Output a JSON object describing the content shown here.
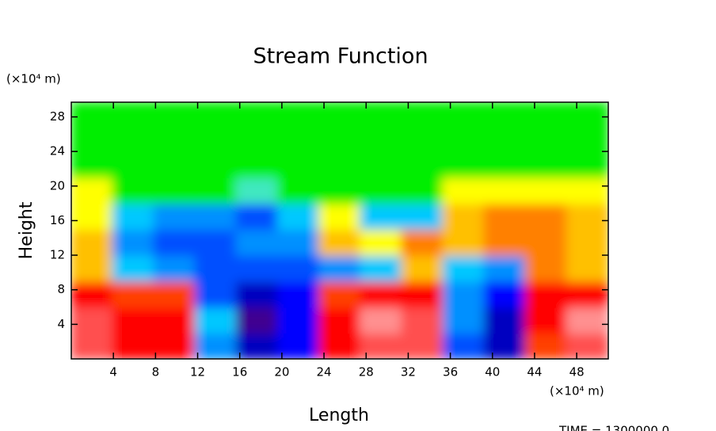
{
  "chart_data": {
    "type": "contour",
    "title": "Stream Function",
    "x_label": "Length",
    "y_label": "Height",
    "x_unit": "(×10⁴ m)",
    "y_unit": "(×10⁴ m)",
    "footer": "TIME = 1300000.0",
    "xlim": [
      0,
      51
    ],
    "ylim": [
      0,
      29.7
    ],
    "xticks": [
      4,
      8,
      12,
      16,
      20,
      24,
      28,
      32,
      36,
      40,
      44,
      48
    ],
    "yticks": [
      4,
      8,
      12,
      16,
      20,
      24,
      28
    ],
    "x": [
      0,
      3.92,
      7.85,
      11.77,
      15.69,
      19.62,
      23.54,
      27.46,
      31.38,
      35.31,
      39.23,
      43.15,
      47.08,
      51
    ],
    "y": [
      0,
      3,
      6,
      9,
      12,
      15,
      18,
      21,
      24,
      27,
      29.7
    ],
    "z": [
      [
        7,
        6,
        6,
        -2,
        -5,
        -4,
        6,
        7,
        7,
        -3,
        -5,
        5,
        7
      ],
      [
        7,
        6,
        6,
        -1,
        -6,
        -4,
        6,
        8,
        7,
        -2,
        -5,
        6,
        8
      ],
      [
        6,
        5,
        5,
        -3,
        -5,
        -4,
        5,
        6,
        6,
        -2,
        -4,
        6,
        6
      ],
      [
        3,
        -1,
        -2,
        -3,
        -3,
        -3,
        -2,
        -1,
        3,
        -1,
        -2,
        4,
        3
      ],
      [
        3,
        -2,
        -3,
        -3,
        -2,
        -2,
        3,
        2,
        4,
        3,
        4,
        4,
        3
      ],
      [
        2,
        -1,
        -2,
        -2,
        -3,
        -1,
        2,
        -1,
        -1,
        3,
        4,
        4,
        3
      ],
      [
        2,
        1,
        1,
        1,
        0,
        1,
        1,
        1,
        1,
        2,
        2,
        2,
        2
      ],
      [
        1,
        1,
        1,
        1,
        1,
        1,
        1,
        1,
        1,
        1,
        1,
        1,
        1
      ],
      [
        1,
        1,
        1,
        1,
        1,
        1,
        1,
        1,
        1,
        1,
        1,
        1,
        1
      ],
      [
        1,
        1,
        1,
        1,
        1,
        1,
        1,
        1,
        1,
        1,
        1,
        1,
        1
      ]
    ],
    "zlim": [
      -6,
      8
    ],
    "colors": [
      "#400090",
      "#0000c0",
      "#0000ff",
      "#0050ff",
      "#0090ff",
      "#00c8ff",
      "#40e8c0",
      "#00ee00",
      "#ffff00",
      "#ffc000",
      "#ff8000",
      "#ff4000",
      "#ff0000",
      "#ff5050",
      "#ff9090"
    ]
  }
}
